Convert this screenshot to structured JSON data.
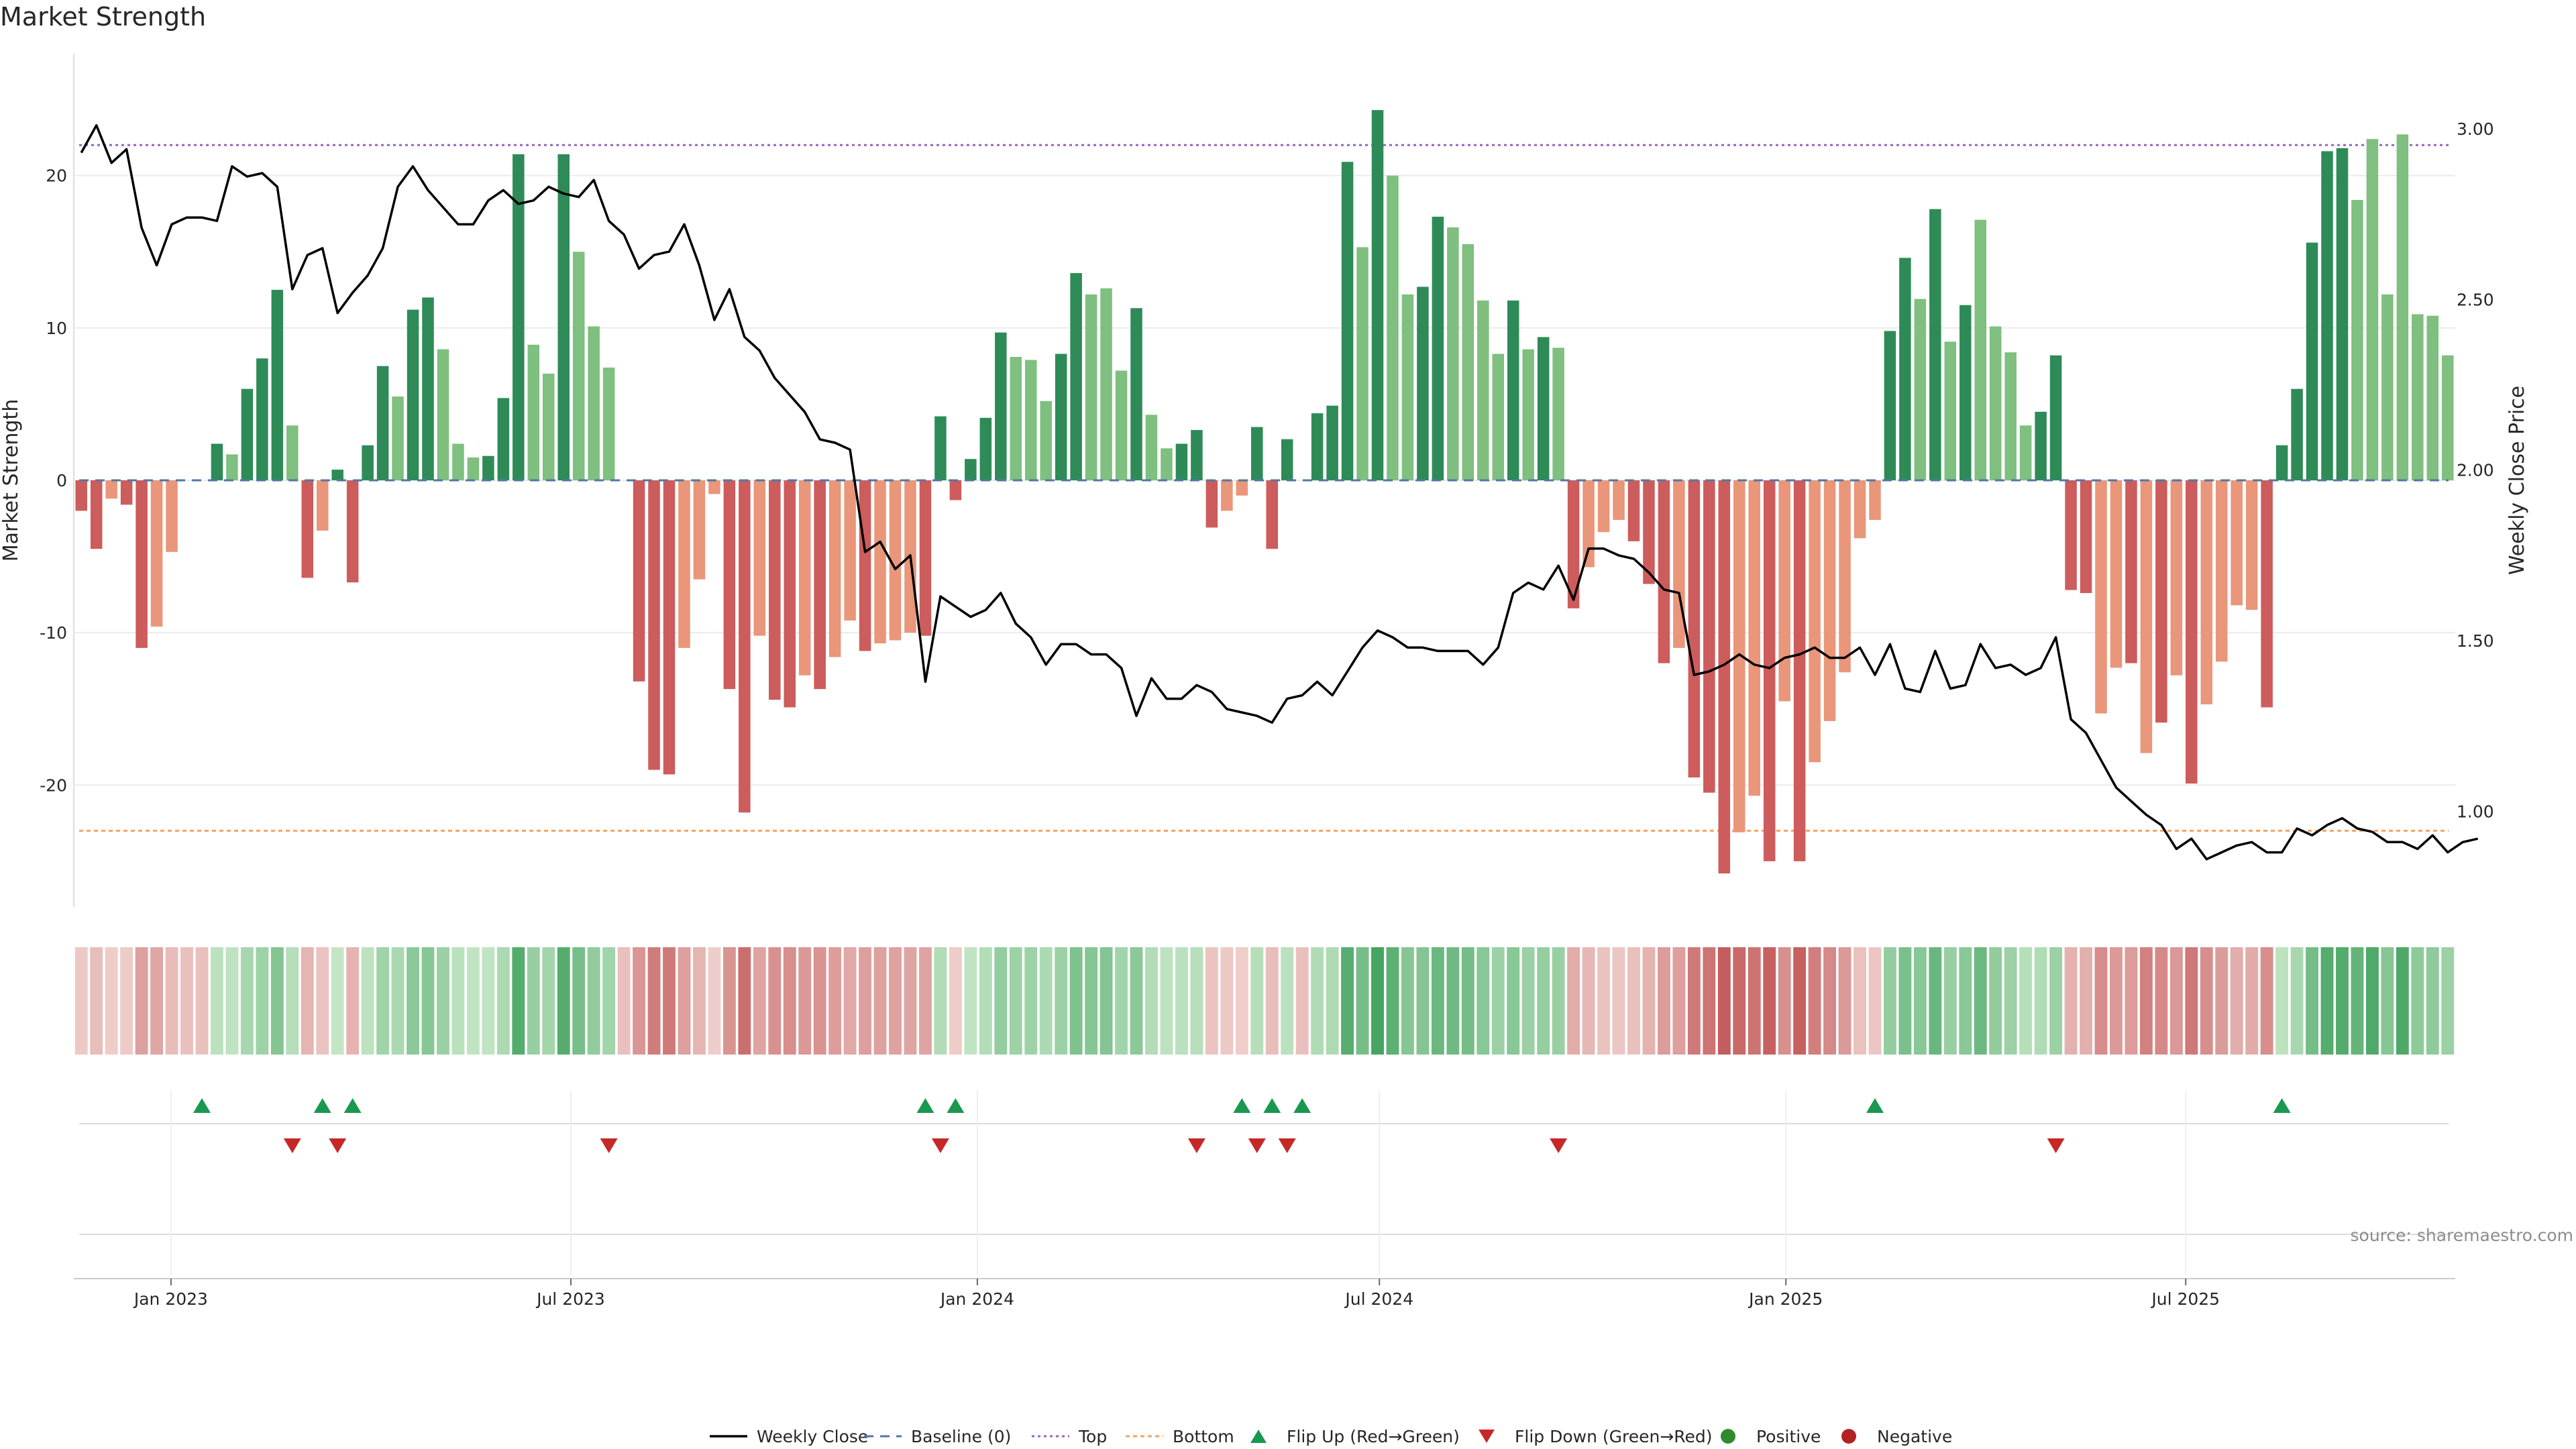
{
  "chart_data": {
    "type": "bar",
    "title": "Market Strength",
    "ylabel": "Market Strength",
    "y2label": "Weekly Close Price",
    "ylim": [
      -28,
      28
    ],
    "y2lim": [
      0.72,
      3.22
    ],
    "yticks": [
      -20,
      -10,
      0,
      10,
      20
    ],
    "y2ticks": [
      1.0,
      1.5,
      2.0,
      2.5,
      3.0
    ],
    "y2tick_labels": [
      "1.00",
      "1.50",
      "2.00",
      "2.50",
      "3.00"
    ],
    "top_line": 22,
    "bottom_line": -23,
    "start_date": "2022-11-18",
    "end_date": "2025-10-31",
    "xticks": [
      {
        "label": "Jan 2023",
        "date": "2023-01-01"
      },
      {
        "label": "Jul 2023",
        "date": "2023-07-01"
      },
      {
        "label": "Jan 2024",
        "date": "2024-01-01"
      },
      {
        "label": "Jul 2024",
        "date": "2024-07-01"
      },
      {
        "label": "Jan 2025",
        "date": "2025-01-01"
      },
      {
        "label": "Jul 2025",
        "date": "2025-07-01"
      }
    ],
    "strength": [
      -2,
      -4.5,
      -1.2,
      -1.6,
      -11,
      -9.6,
      -4.7,
      0,
      0,
      2.4,
      1.7,
      6,
      8,
      12.5,
      3.6,
      -6.4,
      -3.3,
      0.7,
      -6.7,
      2.3,
      7.5,
      5.5,
      11.2,
      12,
      8.6,
      2.4,
      1.5,
      1.6,
      5.4,
      21.4,
      8.9,
      7,
      21.4,
      15,
      10.1,
      7.4,
      0,
      -13.2,
      -19,
      -19.3,
      -11,
      -6.5,
      -0.9,
      -13.7,
      -21.8,
      -10.2,
      -14.4,
      -14.9,
      -12.8,
      -13.7,
      -11.6,
      -9.2,
      -11.2,
      -10.7,
      -10.5,
      -10,
      -10.2,
      4.2,
      -1.3,
      1.4,
      4.1,
      9.7,
      8.1,
      7.9,
      5.2,
      8.3,
      13.6,
      12.2,
      12.6,
      7.2,
      11.3,
      4.3,
      2.1,
      2.4,
      3.3,
      -3.1,
      -2,
      -1,
      3.5,
      -4.5,
      2.7,
      0,
      4.4,
      4.9,
      20.9,
      15.3,
      24.3,
      20,
      12.2,
      12.7,
      17.3,
      16.6,
      15.5,
      11.8,
      8.3,
      11.8,
      8.6,
      9.4,
      8.7,
      -8.4,
      -5.7,
      -3.4,
      -2.6,
      -4,
      -6.8,
      -12,
      -11,
      -19.5,
      -20.5,
      -25.8,
      -23.1,
      -20.7,
      -25,
      -14.5,
      -25,
      -18.5,
      -15.8,
      -12.6,
      -3.8,
      -2.6,
      9.8,
      14.6,
      11.9,
      17.8,
      9.1,
      11.5,
      17.1,
      10.1,
      8.4,
      3.6,
      4.5,
      8.2,
      -7.2,
      -7.4,
      -15.3,
      -12.3,
      -12,
      -17.9,
      -15.9,
      -12.8,
      -19.9,
      -14.7,
      -11.9,
      -8.2,
      -8.5,
      -14.9,
      2.3,
      6,
      15.6,
      21.6,
      21.8,
      18.4,
      22.4,
      12.2,
      22.7,
      10.9,
      10.8,
      8.2
    ],
    "shades": [
      0,
      0,
      1,
      0,
      0,
      1,
      1,
      0,
      0,
      0,
      1,
      0,
      0,
      0,
      1,
      0,
      1,
      0,
      0,
      0,
      0,
      1,
      0,
      0,
      1,
      1,
      1,
      0,
      0,
      0,
      1,
      1,
      0,
      1,
      1,
      1,
      0,
      0,
      0,
      0,
      1,
      1,
      1,
      0,
      0,
      1,
      0,
      0,
      1,
      0,
      1,
      1,
      0,
      1,
      1,
      1,
      0,
      0,
      0,
      0,
      0,
      0,
      1,
      1,
      1,
      0,
      0,
      1,
      1,
      1,
      0,
      1,
      1,
      0,
      0,
      0,
      1,
      1,
      0,
      0,
      0,
      0,
      0,
      0,
      0,
      1,
      0,
      1,
      1,
      0,
      0,
      1,
      1,
      1,
      1,
      0,
      1,
      0,
      1,
      0,
      1,
      1,
      1,
      0,
      0,
      0,
      1,
      0,
      0,
      0,
      1,
      1,
      0,
      1,
      0,
      1,
      1,
      1,
      1,
      1,
      0,
      0,
      1,
      0,
      1,
      0,
      1,
      1,
      1,
      1,
      0,
      0,
      0,
      0,
      1,
      1,
      0,
      1,
      0,
      1,
      0,
      1,
      1,
      1,
      1,
      0,
      0,
      0,
      0,
      0,
      0,
      1,
      1,
      1,
      1,
      1,
      1
    ],
    "close": [
      2.93,
      3.01,
      2.9,
      2.94,
      2.71,
      2.6,
      2.72,
      2.74,
      2.74,
      2.73,
      2.89,
      2.86,
      2.87,
      2.83,
      2.53,
      2.63,
      2.65,
      2.46,
      2.52,
      2.57,
      2.65,
      2.83,
      2.89,
      2.82,
      2.77,
      2.72,
      2.72,
      2.79,
      2.82,
      2.78,
      2.79,
      2.83,
      2.81,
      2.8,
      2.85,
      2.73,
      2.69,
      2.59,
      2.63,
      2.64,
      2.72,
      2.6,
      2.44,
      2.53,
      2.39,
      2.35,
      2.27,
      2.22,
      2.17,
      2.09,
      2.08,
      2.06,
      1.76,
      1.79,
      1.71,
      1.75,
      1.38,
      1.63,
      1.6,
      1.57,
      1.59,
      1.64,
      1.55,
      1.51,
      1.43,
      1.49,
      1.49,
      1.46,
      1.46,
      1.42,
      1.28,
      1.39,
      1.33,
      1.33,
      1.37,
      1.35,
      1.3,
      1.29,
      1.28,
      1.26,
      1.33,
      1.34,
      1.38,
      1.34,
      1.41,
      1.48,
      1.53,
      1.51,
      1.48,
      1.48,
      1.47,
      1.47,
      1.47,
      1.43,
      1.48,
      1.64,
      1.67,
      1.65,
      1.72,
      1.62,
      1.77,
      1.77,
      1.75,
      1.74,
      1.7,
      1.65,
      1.64,
      1.4,
      1.41,
      1.43,
      1.46,
      1.43,
      1.42,
      1.45,
      1.46,
      1.48,
      1.45,
      1.45,
      1.48,
      1.4,
      1.49,
      1.36,
      1.35,
      1.47,
      1.36,
      1.37,
      1.49,
      1.42,
      1.43,
      1.4,
      1.42,
      1.51,
      1.27,
      1.23,
      1.15,
      1.07,
      1.03,
      0.99,
      0.96,
      0.89,
      0.92,
      0.86,
      0.88,
      0.9,
      0.91,
      0.88,
      0.88,
      0.95,
      0.93,
      0.96,
      0.98,
      0.95,
      0.94,
      0.91,
      0.91,
      0.89,
      0.93,
      0.88,
      0.91,
      0.92
    ],
    "flip_up_indices": [
      8,
      16,
      18,
      56,
      58,
      77,
      79,
      81,
      119,
      146
    ],
    "flip_down_indices": [
      14,
      17,
      35,
      57,
      74,
      78,
      80,
      98,
      131
    ],
    "colors": {
      "strong_pos": "#2e8b57",
      "weak_pos": "#7fbf7f",
      "strong_neg": "#cd5c5c",
      "weak_neg": "#e9967a",
      "close_line": "#000000",
      "top_line": "#9467bd",
      "bottom_line": "#f4a460",
      "baseline": "#4e79a7",
      "flip_up": "#1a9850",
      "flip_down": "#c62828",
      "positive": "#2e8b2e",
      "negative": "#b22222"
    },
    "legend": [
      {
        "label": "Weekly Close",
        "type": "line"
      },
      {
        "label": "Baseline (0)",
        "type": "dashed"
      },
      {
        "label": "Top",
        "type": "dotted"
      },
      {
        "label": "Bottom",
        "type": "dotted-orange"
      },
      {
        "label": "Flip Up (Red→Green)",
        "type": "tri-up"
      },
      {
        "label": "Flip Down (Green→Red)",
        "type": "tri-down"
      },
      {
        "label": "Positive",
        "type": "dot-pos"
      },
      {
        "label": "Negative",
        "type": "dot-neg"
      }
    ],
    "source": "source: sharemaestro.com"
  }
}
